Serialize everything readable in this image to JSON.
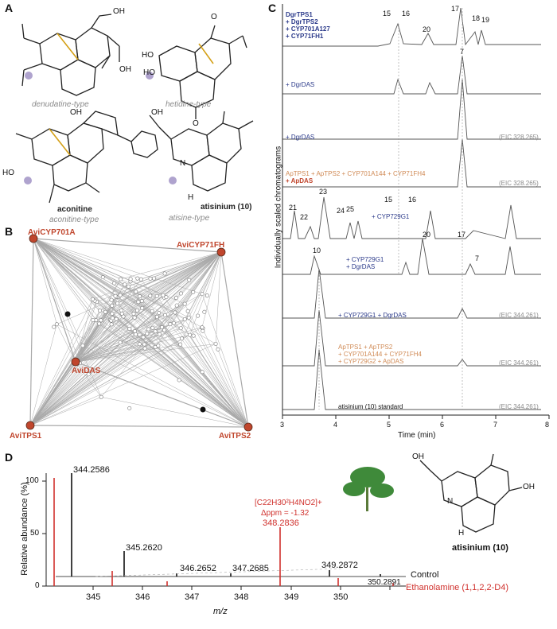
{
  "panels": {
    "a": "A",
    "b": "B",
    "c": "C",
    "d": "D"
  },
  "panelA": {
    "structures": [
      {
        "name": "denudatine-type"
      },
      {
        "name": "hetidine-type"
      },
      {
        "name": "aconitine",
        "sub": "aconitine-type"
      },
      {
        "name": "atisinium (10)",
        "sub": "atisine-type"
      }
    ],
    "atoms": {
      "oh": "OH",
      "ho": "HO",
      "h": "H",
      "n": "N",
      "o": "O"
    }
  },
  "panelB": {
    "nodes": [
      {
        "label": "AviCYP701A"
      },
      {
        "label": "AviCYP71FH"
      },
      {
        "label": "AviDAS"
      },
      {
        "label": "AviTPS1"
      },
      {
        "label": "AviTPS2"
      }
    ],
    "accent": "#c0462d"
  },
  "panelC": {
    "ylabel": "Individually scaled chromatograms",
    "xlabel": "Time (min)",
    "xticks": [
      "3",
      "4",
      "5",
      "6",
      "7",
      "8"
    ],
    "traces": [
      {
        "lines": [
          "DgrTPS1",
          "+ DgrTPS2",
          "+ CYP701A127",
          "+ CYP71FH1"
        ],
        "eic": ""
      },
      {
        "lines": [
          "+ DgrDAS"
        ],
        "eic": ""
      },
      {
        "lines": [
          "+ DgrDAS"
        ],
        "eic": "(EIC 328.265)"
      },
      {
        "lines": [
          "ApTPS1 + ApTPS2 + CYP701A144 + CYP71FH4",
          "+ ApDAS"
        ],
        "eic": "(EIC 328.265)"
      },
      {
        "lines": [
          "+ CYP729G1"
        ],
        "eic": ""
      },
      {
        "lines": [
          "+ CYP729G1",
          "+ DgrDAS"
        ],
        "eic": ""
      },
      {
        "lines": [
          "+ CYP729G1 + DgrDAS"
        ],
        "eic": "(EIC 344.261)"
      },
      {
        "lines": [
          "ApTPS1 + ApTPS2",
          "+ CYP701A144 + CYP71FH4",
          "+ CYP729G2 + ApDAS"
        ],
        "eic": "(EIC 344.261)"
      },
      {
        "lines": [
          "atisinium (10) standard"
        ],
        "eic": "(EIC 344.261)"
      }
    ],
    "peaks": [
      "15",
      "16",
      "17",
      "18",
      "19",
      "20",
      "7",
      "21",
      "22",
      "23",
      "24",
      "25",
      "15",
      "16",
      "20",
      "17",
      "10",
      "7"
    ]
  },
  "panelD": {
    "ylabel": "Relative abundance (%)",
    "xlabel": "m/z",
    "yticks": [
      "100",
      "50",
      "0"
    ],
    "xticks": [
      "345",
      "346",
      "347",
      "348",
      "349",
      "350"
    ],
    "peak_labels": [
      "344.2586",
      "345.2620",
      "346.2652",
      "347.2685",
      "349.2872",
      "350.2891"
    ],
    "formula": "[C22H30²H4NO2]+",
    "delta": "Δppm = -1.32",
    "red_peak": "348.2836",
    "legend": [
      "Control",
      "Ethanolamine (1,1,2,2-D4)"
    ],
    "compound": "atisinium (10)",
    "colors": {
      "control": "#111111",
      "labeled": "#d0312d"
    }
  }
}
